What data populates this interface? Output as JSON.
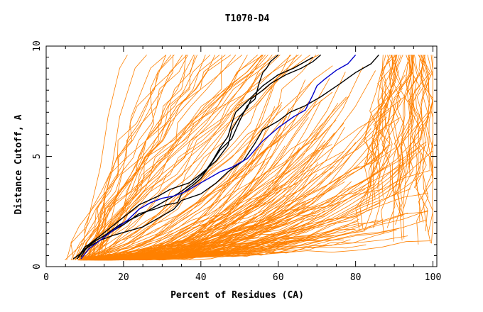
{
  "chart_data": {
    "type": "line",
    "title": "T1070-D4",
    "xlabel": "Percent of Residues (CA)",
    "ylabel": "Distance Cutoff, A",
    "xlim": [
      0,
      101
    ],
    "ylim": [
      0,
      10
    ],
    "x_ticks": [
      0,
      20,
      40,
      60,
      80,
      100
    ],
    "x_tick_labels": [
      "0",
      "20",
      "40",
      "60",
      "80",
      "100"
    ],
    "y_ticks": [
      0,
      5,
      10
    ],
    "y_tick_labels": [
      "0",
      "5",
      "10"
    ],
    "grid": false,
    "legend": "none",
    "colors": {
      "background": "#ffffff",
      "frame": "#000000",
      "bundle": "#ff8000",
      "reference": "#0000cc",
      "highlight": "#000000"
    },
    "series": [
      {
        "role": "bundle",
        "color": "#ff8000",
        "note": "many model curves",
        "x": [],
        "y": []
      },
      {
        "role": "highlight",
        "color": "#000000",
        "x": [
          8,
          10,
          15,
          19,
          25,
          29,
          34,
          38,
          41,
          43,
          45,
          47,
          48,
          49,
          52,
          56,
          60,
          64,
          66,
          69
        ],
        "y": [
          0.35,
          0.9,
          1.4,
          1.9,
          2.4,
          2.8,
          3.3,
          3.8,
          4.3,
          4.8,
          5.4,
          5.9,
          6.5,
          7.0,
          7.5,
          8.2,
          8.7,
          9.0,
          9.2,
          9.5
        ]
      },
      {
        "role": "highlight",
        "color": "#000000",
        "x": [
          9,
          11,
          14,
          19,
          24,
          29,
          32,
          37,
          40,
          44,
          47,
          48,
          50,
          52,
          53,
          56,
          58,
          62,
          66,
          69,
          71
        ],
        "y": [
          0.45,
          1.0,
          1.4,
          2.1,
          2.8,
          3.2,
          3.5,
          3.8,
          4.2,
          4.8,
          5.5,
          6.2,
          6.8,
          7.2,
          7.6,
          8.0,
          8.3,
          8.7,
          9.0,
          9.3,
          9.6
        ]
      },
      {
        "role": "highlight",
        "color": "#000000",
        "x": [
          7,
          9,
          11,
          14,
          17,
          21,
          25,
          29,
          33,
          35,
          40,
          44,
          47,
          51,
          54,
          56,
          60,
          63,
          67,
          71,
          76,
          80,
          84,
          86
        ],
        "y": [
          0.35,
          0.6,
          0.9,
          1.2,
          1.4,
          1.6,
          1.8,
          2.2,
          2.6,
          3.0,
          3.3,
          3.8,
          4.3,
          4.8,
          5.6,
          6.2,
          6.6,
          7.0,
          7.3,
          7.7,
          8.3,
          8.8,
          9.2,
          9.6
        ]
      },
      {
        "role": "highlight",
        "color": "#000000",
        "x": [
          8,
          10,
          13,
          16,
          20,
          24,
          28,
          31,
          34,
          35,
          38,
          40,
          42,
          45,
          48,
          50,
          52,
          54,
          55,
          56,
          57,
          58,
          60
        ],
        "y": [
          0.35,
          0.8,
          1.2,
          1.5,
          1.9,
          2.4,
          2.6,
          2.8,
          2.9,
          3.3,
          3.7,
          4.0,
          4.5,
          5.3,
          5.8,
          6.6,
          7.3,
          7.6,
          8.3,
          8.8,
          9.0,
          9.3,
          9.6
        ]
      },
      {
        "role": "reference",
        "color": "#0000cc",
        "x": [
          9,
          11,
          14,
          17,
          21,
          24,
          27,
          30,
          33,
          36,
          39,
          42,
          45,
          48,
          52,
          56,
          60,
          64,
          67,
          69,
          70,
          72,
          75,
          78,
          79,
          80
        ],
        "y": [
          0.35,
          0.8,
          1.2,
          1.6,
          2.1,
          2.6,
          2.9,
          3.1,
          3.2,
          3.4,
          3.7,
          4.0,
          4.3,
          4.5,
          4.9,
          5.7,
          6.3,
          6.8,
          7.1,
          7.8,
          8.2,
          8.5,
          8.9,
          9.2,
          9.4,
          9.6
        ]
      }
    ]
  }
}
